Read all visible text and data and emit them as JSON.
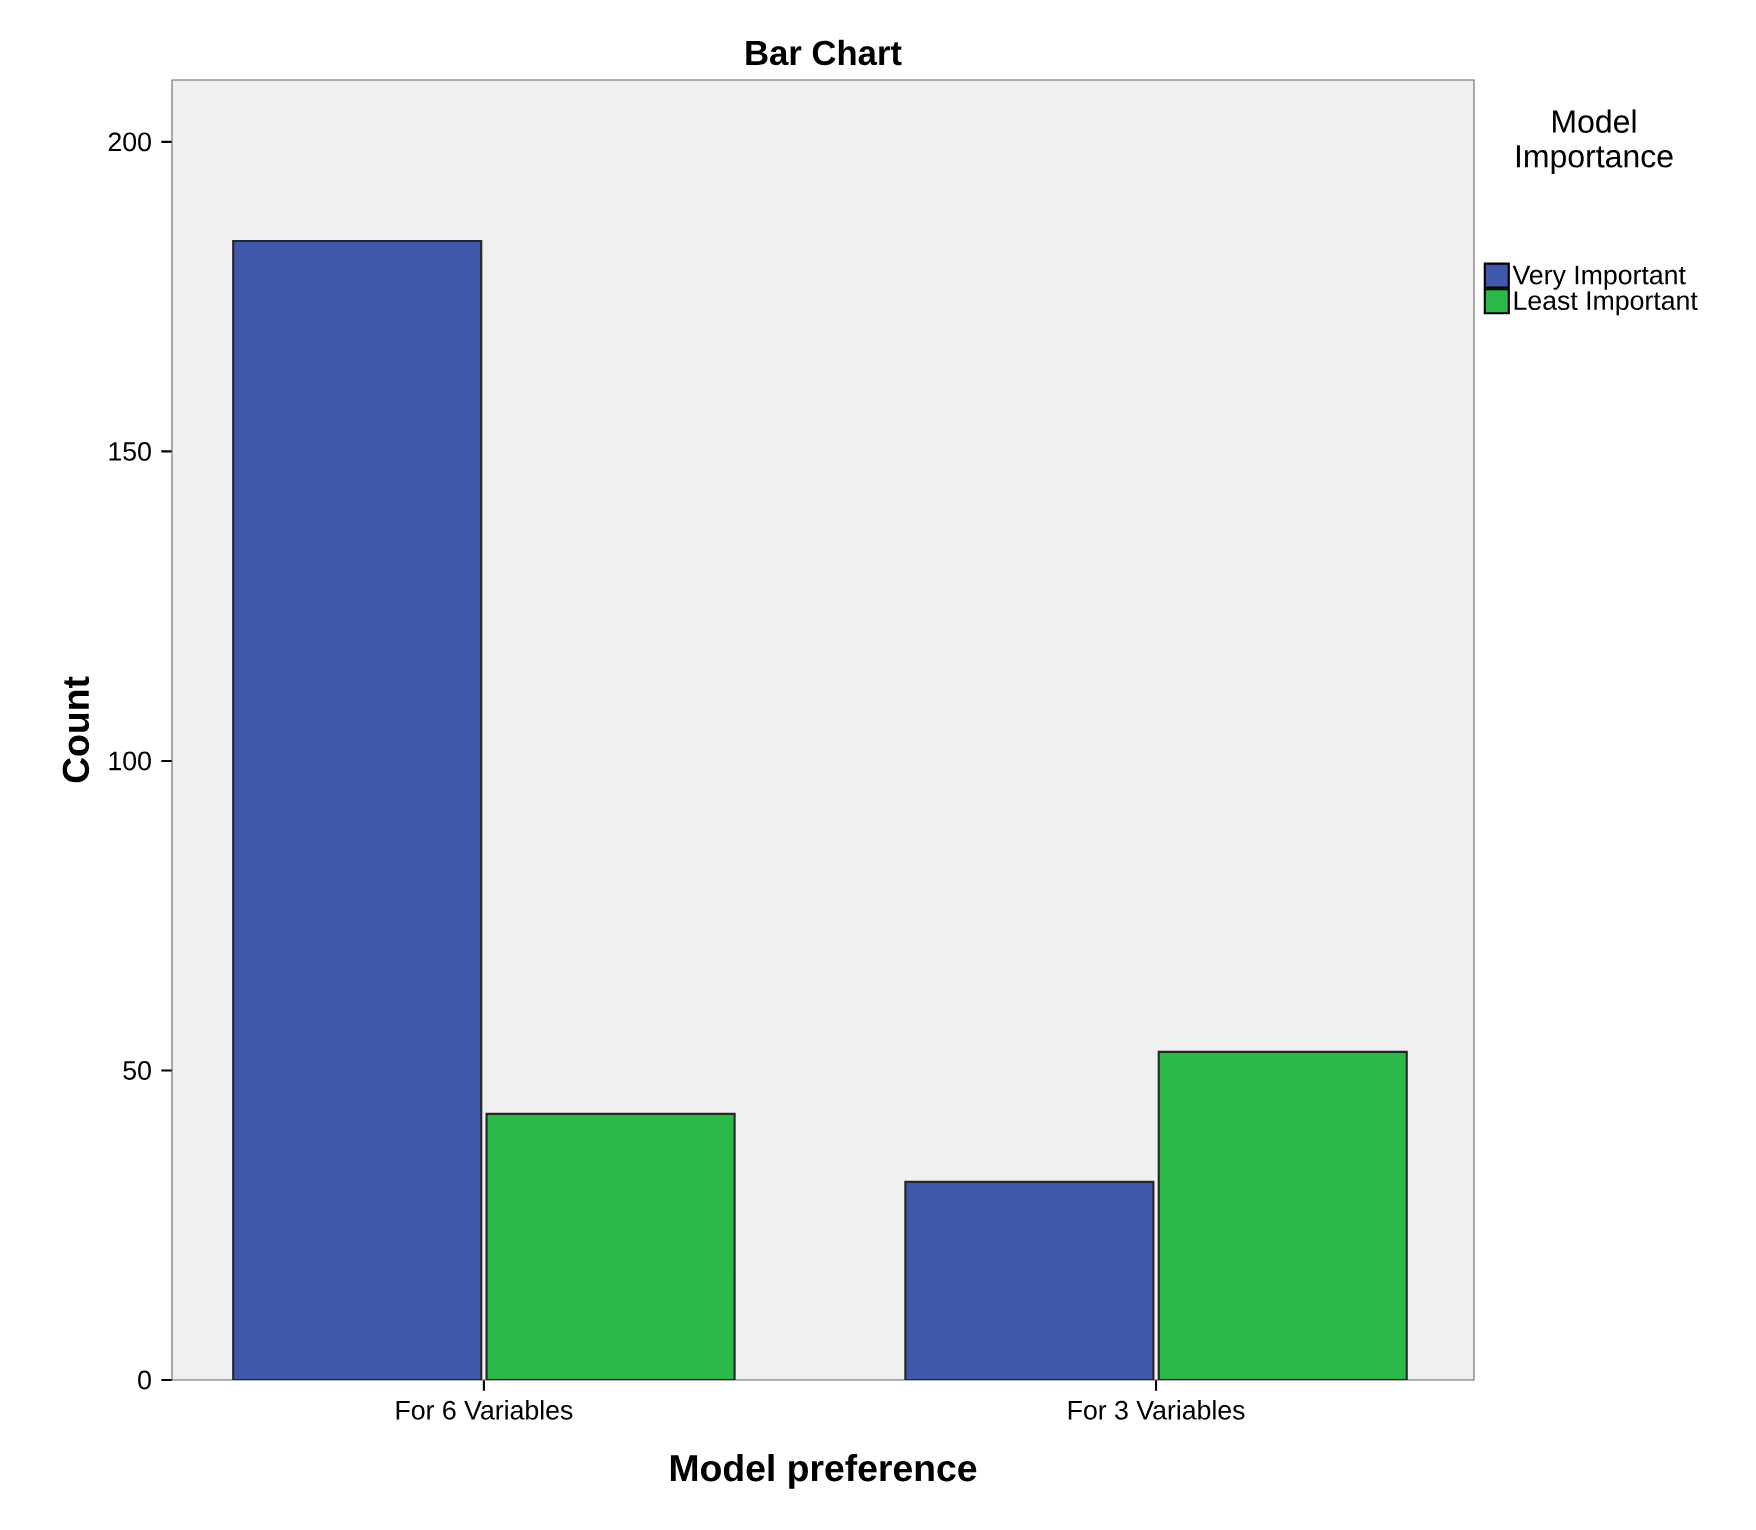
{
  "chart_data": {
    "type": "bar",
    "title": "Bar Chart",
    "xlabel": "Model preference",
    "ylabel": "Count",
    "legend_title": "Model Importance",
    "categories": [
      "For 6 Variables",
      "For 3 Variables"
    ],
    "series": [
      {
        "name": "Very Important",
        "color": "#3e58ab",
        "values": [
          184,
          32
        ]
      },
      {
        "name": "Least Important",
        "color": "#2db84a",
        "values": [
          43,
          53
        ]
      }
    ],
    "ylim": [
      0,
      210
    ],
    "yticks": [
      0,
      50,
      100,
      150,
      200
    ],
    "grid": false,
    "legend": "top right"
  }
}
